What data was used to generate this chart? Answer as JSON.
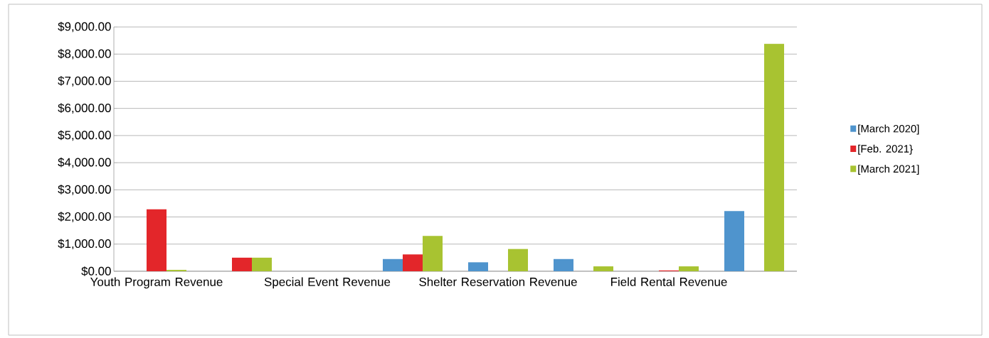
{
  "chart_data": {
    "type": "bar",
    "categories": [
      "Youth Program Revenue",
      null,
      "Special Event Revenue",
      null,
      "Shelter Reservation Revenue",
      null,
      "Field Rental Revenue",
      null
    ],
    "series": [
      {
        "name": "[March 2020]",
        "color": "#4f94cd",
        "values": [
          0,
          0,
          0,
          450,
          330,
          450,
          0,
          2220
        ]
      },
      {
        "name": "[Feb. 2021}",
        "color": "#e3262a",
        "values": [
          2280,
          500,
          0,
          620,
          0,
          0,
          30,
          0
        ]
      },
      {
        "name": "[March 2021]",
        "color": "#a8c331",
        "values": [
          50,
          500,
          0,
          1300,
          820,
          180,
          180,
          8380
        ]
      }
    ],
    "ylim": [
      0,
      9000
    ],
    "yticks": [
      {
        "value": 0,
        "label": "$0.00"
      },
      {
        "value": 1000,
        "label": "$1,000.00"
      },
      {
        "value": 2000,
        "label": "$2,000.00"
      },
      {
        "value": 3000,
        "label": "$3,000.00"
      },
      {
        "value": 4000,
        "label": "$4,000.00"
      },
      {
        "value": 5000,
        "label": "$5,000.00"
      },
      {
        "value": 6000,
        "label": "$6,000.00"
      },
      {
        "value": 7000,
        "label": "$7,000.00"
      },
      {
        "value": 8000,
        "label": "$8,000.00"
      },
      {
        "value": 9000,
        "label": "$9,000.00"
      }
    ],
    "grid": "y",
    "legend": "right"
  }
}
